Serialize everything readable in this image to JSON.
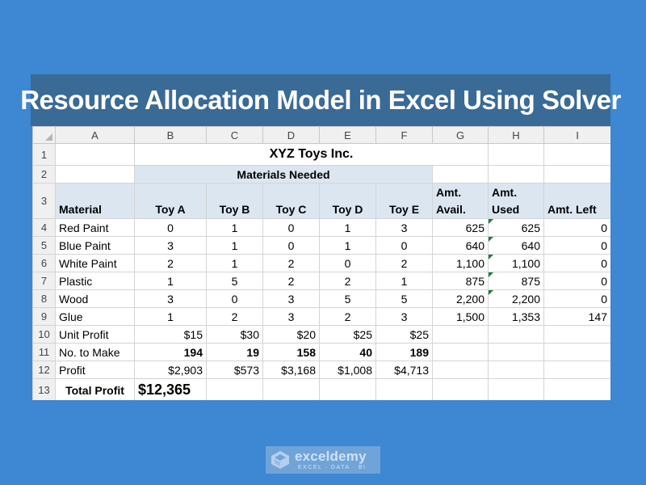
{
  "banner": {
    "title": "Resource Allocation Model in Excel Using Solver"
  },
  "columns": [
    "A",
    "B",
    "C",
    "D",
    "E",
    "F",
    "G",
    "H",
    "I"
  ],
  "rows": {
    "r1": {
      "num": "1",
      "title": "XYZ Toys Inc."
    },
    "r2": {
      "num": "2",
      "group": "Materials Needed"
    },
    "r3": {
      "num": "3",
      "material": "Material",
      "toys": [
        "Toy A",
        "Toy B",
        "Toy C",
        "Toy D",
        "Toy E"
      ],
      "avail": [
        "Amt.",
        "Avail."
      ],
      "used": [
        "Amt.",
        "Used"
      ],
      "left": "Amt. Left"
    },
    "materials": [
      {
        "num": "4",
        "name": "Red Paint",
        "needs": [
          "0",
          "1",
          "0",
          "1",
          "3"
        ],
        "avail": "625",
        "used": "625",
        "left": "0"
      },
      {
        "num": "5",
        "name": "Blue Paint",
        "needs": [
          "3",
          "1",
          "0",
          "1",
          "0"
        ],
        "avail": "640",
        "used": "640",
        "left": "0"
      },
      {
        "num": "6",
        "name": "White Paint",
        "needs": [
          "2",
          "1",
          "2",
          "0",
          "2"
        ],
        "avail": "1,100",
        "used": "1,100",
        "left": "0"
      },
      {
        "num": "7",
        "name": "Plastic",
        "needs": [
          "1",
          "5",
          "2",
          "2",
          "1"
        ],
        "avail": "875",
        "used": "875",
        "left": "0"
      },
      {
        "num": "8",
        "name": "Wood",
        "needs": [
          "3",
          "0",
          "3",
          "5",
          "5"
        ],
        "avail": "2,200",
        "used": "2,200",
        "left": "0"
      },
      {
        "num": "9",
        "name": "Glue",
        "needs": [
          "1",
          "2",
          "3",
          "2",
          "3"
        ],
        "avail": "1,500",
        "used": "1,353",
        "left": "147"
      }
    ],
    "unit_profit": {
      "num": "10",
      "label": "Unit Profit",
      "values": [
        "$15",
        "$30",
        "$20",
        "$25",
        "$25"
      ]
    },
    "no_to_make": {
      "num": "11",
      "label": "No. to Make",
      "values": [
        "194",
        "19",
        "158",
        "40",
        "189"
      ]
    },
    "profit": {
      "num": "12",
      "label": "Profit",
      "values": [
        "$2,903",
        "$573",
        "$3,168",
        "$1,008",
        "$4,713"
      ]
    },
    "total": {
      "num": "13",
      "label": "Total Profit",
      "value": "$12,365"
    }
  },
  "logo": {
    "brand": "exceldemy",
    "tagline": "EXCEL · DATA · BI"
  },
  "colors": {
    "background": "#3d87d3",
    "banner": "#3a6a96",
    "header_shade": "#dce6f1"
  }
}
